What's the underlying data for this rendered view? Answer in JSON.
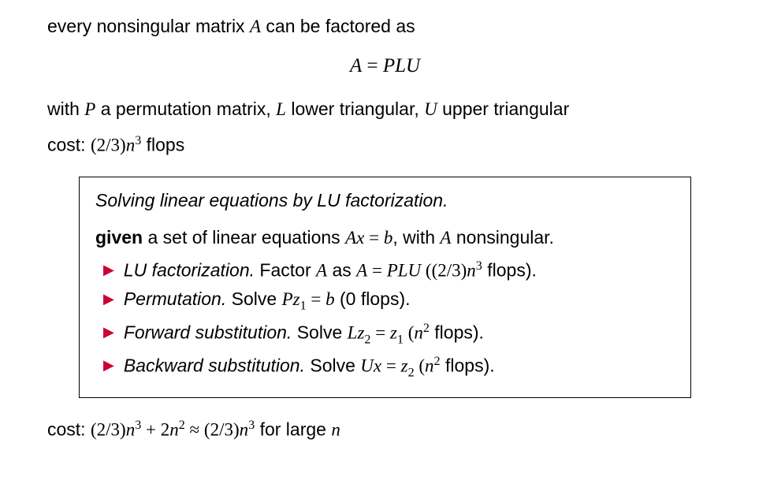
{
  "intro": {
    "line1_prefix": "every nonsingular matrix ",
    "line1_A": "A",
    "line1_suffix": " can be factored as"
  },
  "equation": {
    "lhs": "A",
    "eq": " = ",
    "rhs": "PLU"
  },
  "desc": {
    "prefix": "with ",
    "P": "P",
    "p_desc": " a permutation matrix, ",
    "L": "L",
    "l_desc": " lower triangular, ",
    "U": "U",
    "u_desc": " upper triangular"
  },
  "cost1": {
    "label": "cost: ",
    "open": "(",
    "frac": "2/3",
    "close": ")",
    "n": "n",
    "exp": "3",
    "flops": " flops"
  },
  "algo": {
    "title": "Solving linear equations by LU factorization.",
    "given_bold": "given",
    "given_pre": " a set of linear equations ",
    "given_eq_A": "A",
    "given_eq_x": "x",
    "given_eq_eq": " = ",
    "given_eq_b": "b",
    "given_mid": ", with ",
    "given_A2": "A",
    "given_post": " nonsingular.",
    "steps": [
      {
        "name": "LU factorization.",
        "pre": " Factor ",
        "m1": "A",
        "mid1": " as ",
        "m2": "A",
        "eq": " = ",
        "m3": "PLU",
        "cost_open": " ((",
        "frac": "2/3",
        "cost_close1": ")",
        "n": "n",
        "exp": "3",
        "flops": " flops)."
      },
      {
        "name": "Permutation.",
        "pre": " Solve ",
        "m1": "P",
        "m2": "z",
        "sub": "1",
        "eq": " = ",
        "m3": "b",
        "cost": " (0 flops)."
      },
      {
        "name": "Forward substitution.",
        "pre": " Solve ",
        "m1": "L",
        "m2": "z",
        "sub": "2",
        "eq": " = ",
        "m3": "z",
        "sub2": "1",
        "cost_open": " (",
        "n": "n",
        "exp": "2",
        "flops": " flops)."
      },
      {
        "name": "Backward substitution.",
        "pre": " Solve ",
        "m1": "U",
        "m2": "x",
        "eq": " = ",
        "m3": "z",
        "sub2": "2",
        "cost_open": " (",
        "n": "n",
        "exp": "2",
        "flops": " flops)."
      }
    ]
  },
  "cost2": {
    "label": "cost: ",
    "open1": "(",
    "frac1": "2/3",
    "close1": ")",
    "n1": "n",
    "exp1": "3",
    "plus": " + 2",
    "n2": "n",
    "exp2": "2",
    "approx": " ≈ ",
    "open2": "(",
    "frac2": "2/3",
    "close2": ")",
    "n3": "n",
    "exp3": "3",
    "forlarge": " for large ",
    "n4": "n"
  },
  "style": {
    "bullet_color": "#cc0033",
    "text_color": "#000000",
    "bg_color": "#ffffff",
    "font_size_body": 23,
    "font_size_eq": 25,
    "border_color": "#000000"
  }
}
